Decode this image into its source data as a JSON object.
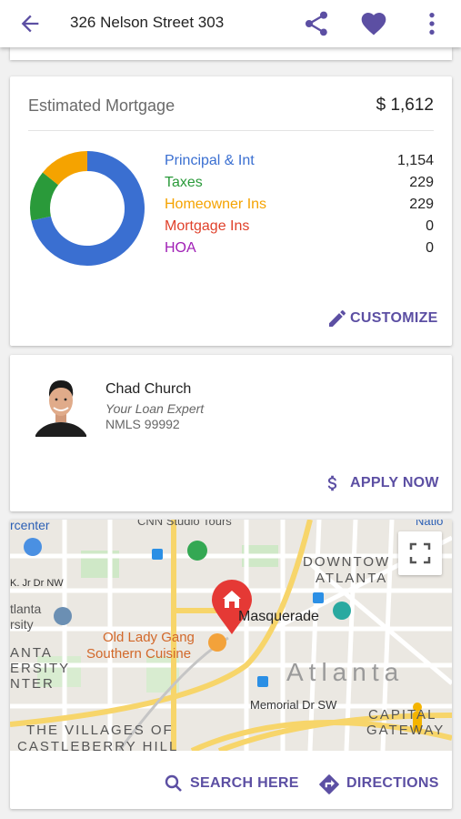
{
  "header": {
    "title": "326 Nelson Street 303",
    "back_icon": "arrow-back-icon",
    "share_icon": "share-icon",
    "favorite_icon": "heart-icon",
    "more_icon": "more-vert-icon",
    "accent": "#5c4fa3"
  },
  "mortgage": {
    "heading": "Estimated Mortgage",
    "total": "$ 1,612",
    "breakdown": [
      {
        "label": "Principal & Int",
        "value": "1,154",
        "color": "#3a6fd1"
      },
      {
        "label": "Taxes",
        "value": "229",
        "color": "#2a9a3a"
      },
      {
        "label": "Homeowner Ins",
        "value": "229",
        "color": "#f5a300"
      },
      {
        "label": "Mortgage Ins",
        "value": "0",
        "color": "#e0412b"
      },
      {
        "label": "HOA",
        "value": "0",
        "color": "#a01fb6"
      }
    ],
    "customize_label": "CUSTOMIZE"
  },
  "agent": {
    "name": "Chad Church",
    "role": "Your Loan Expert",
    "nmls": "NMLS 99992",
    "apply_label": "APPLY NOW"
  },
  "map": {
    "labels": {
      "center": "rcenter",
      "cnn": "CNN Studio Tours",
      "natl": "Natio",
      "downtown": "DOWNTOW",
      "atlanta_small": "ATLANTA",
      "mlk": "K. Jr Dr NW",
      "atlanta_univ1": "tlanta",
      "atlanta_univ2": "rsity",
      "masquerade": "Masquerade",
      "old_lady_gang": "Old Lady Gang",
      "southern_cuisine": "Southern Cuisine",
      "anta": "ANTA",
      "ersity": "ERSITY",
      "nter": "NTER",
      "atlanta_big": "Atlanta",
      "memorial": "Memorial Dr SW",
      "capital": "CAPITAL",
      "gateway": "GATEWAY",
      "villages": "THE VILLAGES OF",
      "castleberry": "CASTLEBERRY HILL"
    },
    "search_label": "SEARCH HERE",
    "directions_label": "DIRECTIONS"
  }
}
